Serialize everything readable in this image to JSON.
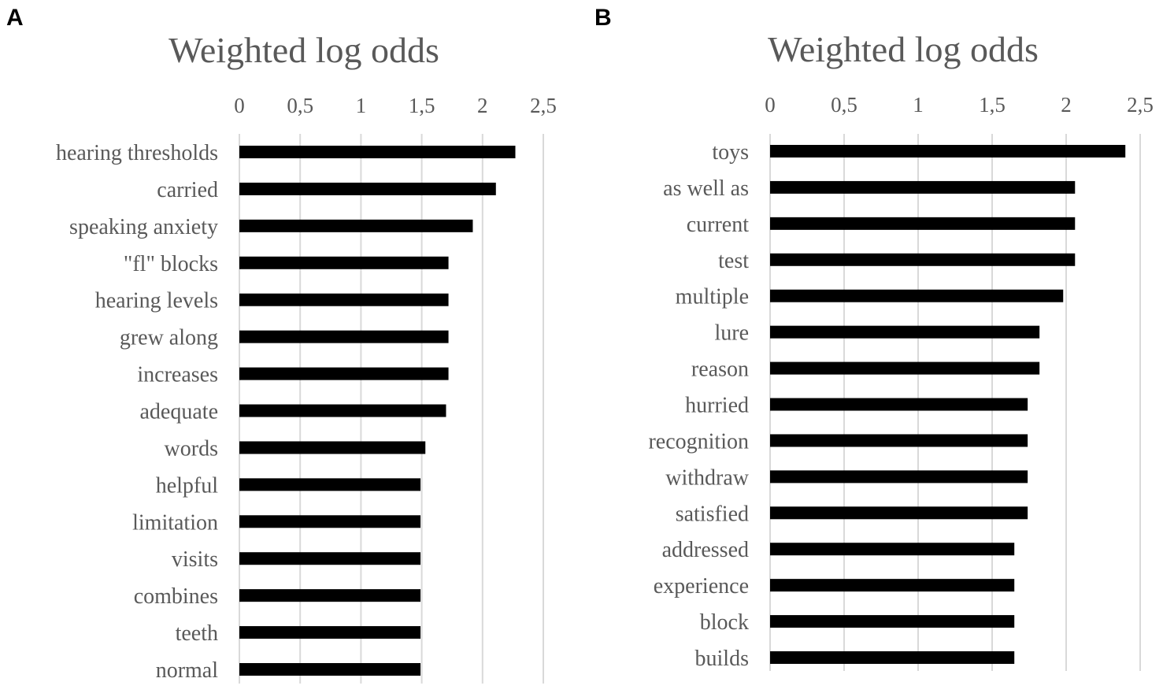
{
  "figure_labels": [
    "A",
    "B"
  ],
  "chart_data": [
    {
      "type": "bar",
      "orientation": "horizontal",
      "panel": "A",
      "title": "Weighted log odds",
      "xlabel": "",
      "ylabel": "",
      "xlim": [
        0,
        2.5
      ],
      "x_ticks": [
        "0",
        "0,5",
        "1",
        "1,5",
        "2",
        "2,5"
      ],
      "grid": true,
      "categories": [
        "hearing thresholds",
        "carried",
        "speaking anxiety",
        "\"fl\" blocks",
        "hearing levels",
        "grew along",
        "increases",
        "adequate",
        "words",
        "helpful",
        "limitation",
        "visits",
        "combines",
        "teeth",
        "normal"
      ],
      "values": [
        2.27,
        2.11,
        1.92,
        1.72,
        1.72,
        1.72,
        1.72,
        1.7,
        1.53,
        1.49,
        1.49,
        1.49,
        1.49,
        1.49,
        1.49
      ],
      "bar_color": "#000000"
    },
    {
      "type": "bar",
      "orientation": "horizontal",
      "panel": "B",
      "title": "Weighted log odds",
      "xlabel": "",
      "ylabel": "",
      "xlim": [
        0,
        2.5
      ],
      "x_ticks": [
        "0",
        "0,5",
        "1",
        "1,5",
        "2",
        "2,5"
      ],
      "grid": true,
      "categories": [
        "toys",
        "as well as",
        "current",
        "test",
        "multiple",
        "lure",
        "reason",
        "hurried",
        "recognition",
        "withdraw",
        "satisfied",
        "addressed",
        "experience",
        "block",
        "builds"
      ],
      "values": [
        2.4,
        2.06,
        2.06,
        2.06,
        1.98,
        1.82,
        1.82,
        1.74,
        1.74,
        1.74,
        1.74,
        1.65,
        1.65,
        1.65,
        1.65
      ],
      "bar_color": "#000000"
    }
  ]
}
